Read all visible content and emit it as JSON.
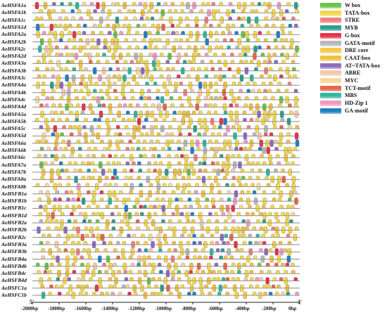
{
  "genes": [
    "AeHSFA1a",
    "AeHSFA1b",
    "AeHSFA1c",
    "AeHSFA1d",
    "AeHSFA2a",
    "AeHSFA2b",
    "AeHSFA2c",
    "AeHSFA2d",
    "AeHSFA3a",
    "AeHSFA3b",
    "AeHSFA3c",
    "AeHSFA4a",
    "AeHSFA4b",
    "AeHSFA4c",
    "AeHSFA4d",
    "AeHSFA5a",
    "AeHSFA5b",
    "AeHSFA5c",
    "AeHSFA5d",
    "AeHSFA6a",
    "AeHSFA6b",
    "AeHSFA6c",
    "AeHSFA7a",
    "AeHSFA7b",
    "AeHSFA8a",
    "AeHSFA8b",
    "AeHSFB1a",
    "AeHSFB1b",
    "AeHSFB1c",
    "AeHSFB1d",
    "AeHSFB2a",
    "AeHSFB2b",
    "AeHSFB2c",
    "AeHSFB3a",
    "AeHSFB3b",
    "AeHSFB4a",
    "AeHSFB4b",
    "AeHSFB4c",
    "AeHSFB4d",
    "AeHSFC1a",
    "AeHSFC1b"
  ],
  "legend": [
    {
      "label": "W box",
      "color": "#6cc24a"
    },
    {
      "label": "TATA-box",
      "color": "#f2d64b"
    },
    {
      "label": "STRE",
      "color": "#f08080"
    },
    {
      "label": "MYB",
      "color": "#2e9e8f"
    },
    {
      "label": "G-box",
      "color": "#e8324b"
    },
    {
      "label": "GATA-motif",
      "color": "#b8b8b8"
    },
    {
      "label": "DRE core",
      "color": "#f6c84a"
    },
    {
      "label": "CAAT-box",
      "color": "#f0c040"
    },
    {
      "label": "AT~TATA-box",
      "color": "#8e6bbf"
    },
    {
      "label": "ABRE",
      "color": "#f6c7a8"
    },
    {
      "label": "MYC",
      "color": "#f5d89a"
    },
    {
      "label": "TCT-motif",
      "color": "#e8664a"
    },
    {
      "label": "MBS",
      "color": "#2fb8a0"
    },
    {
      "label": "HD-Zip 1",
      "color": "#f09ac0"
    },
    {
      "label": "GA-motif",
      "color": "#1f7fc4"
    }
  ],
  "axis": {
    "ticks": [
      "-2000bp",
      "-1800bp",
      "-1600bp",
      "-1400bp",
      "-1200bp",
      "-1000bp",
      "-800bp",
      "-600bp",
      "-400bp",
      "-200bp",
      "0bp"
    ],
    "start_label": "5'",
    "end_label": "3'"
  }
}
